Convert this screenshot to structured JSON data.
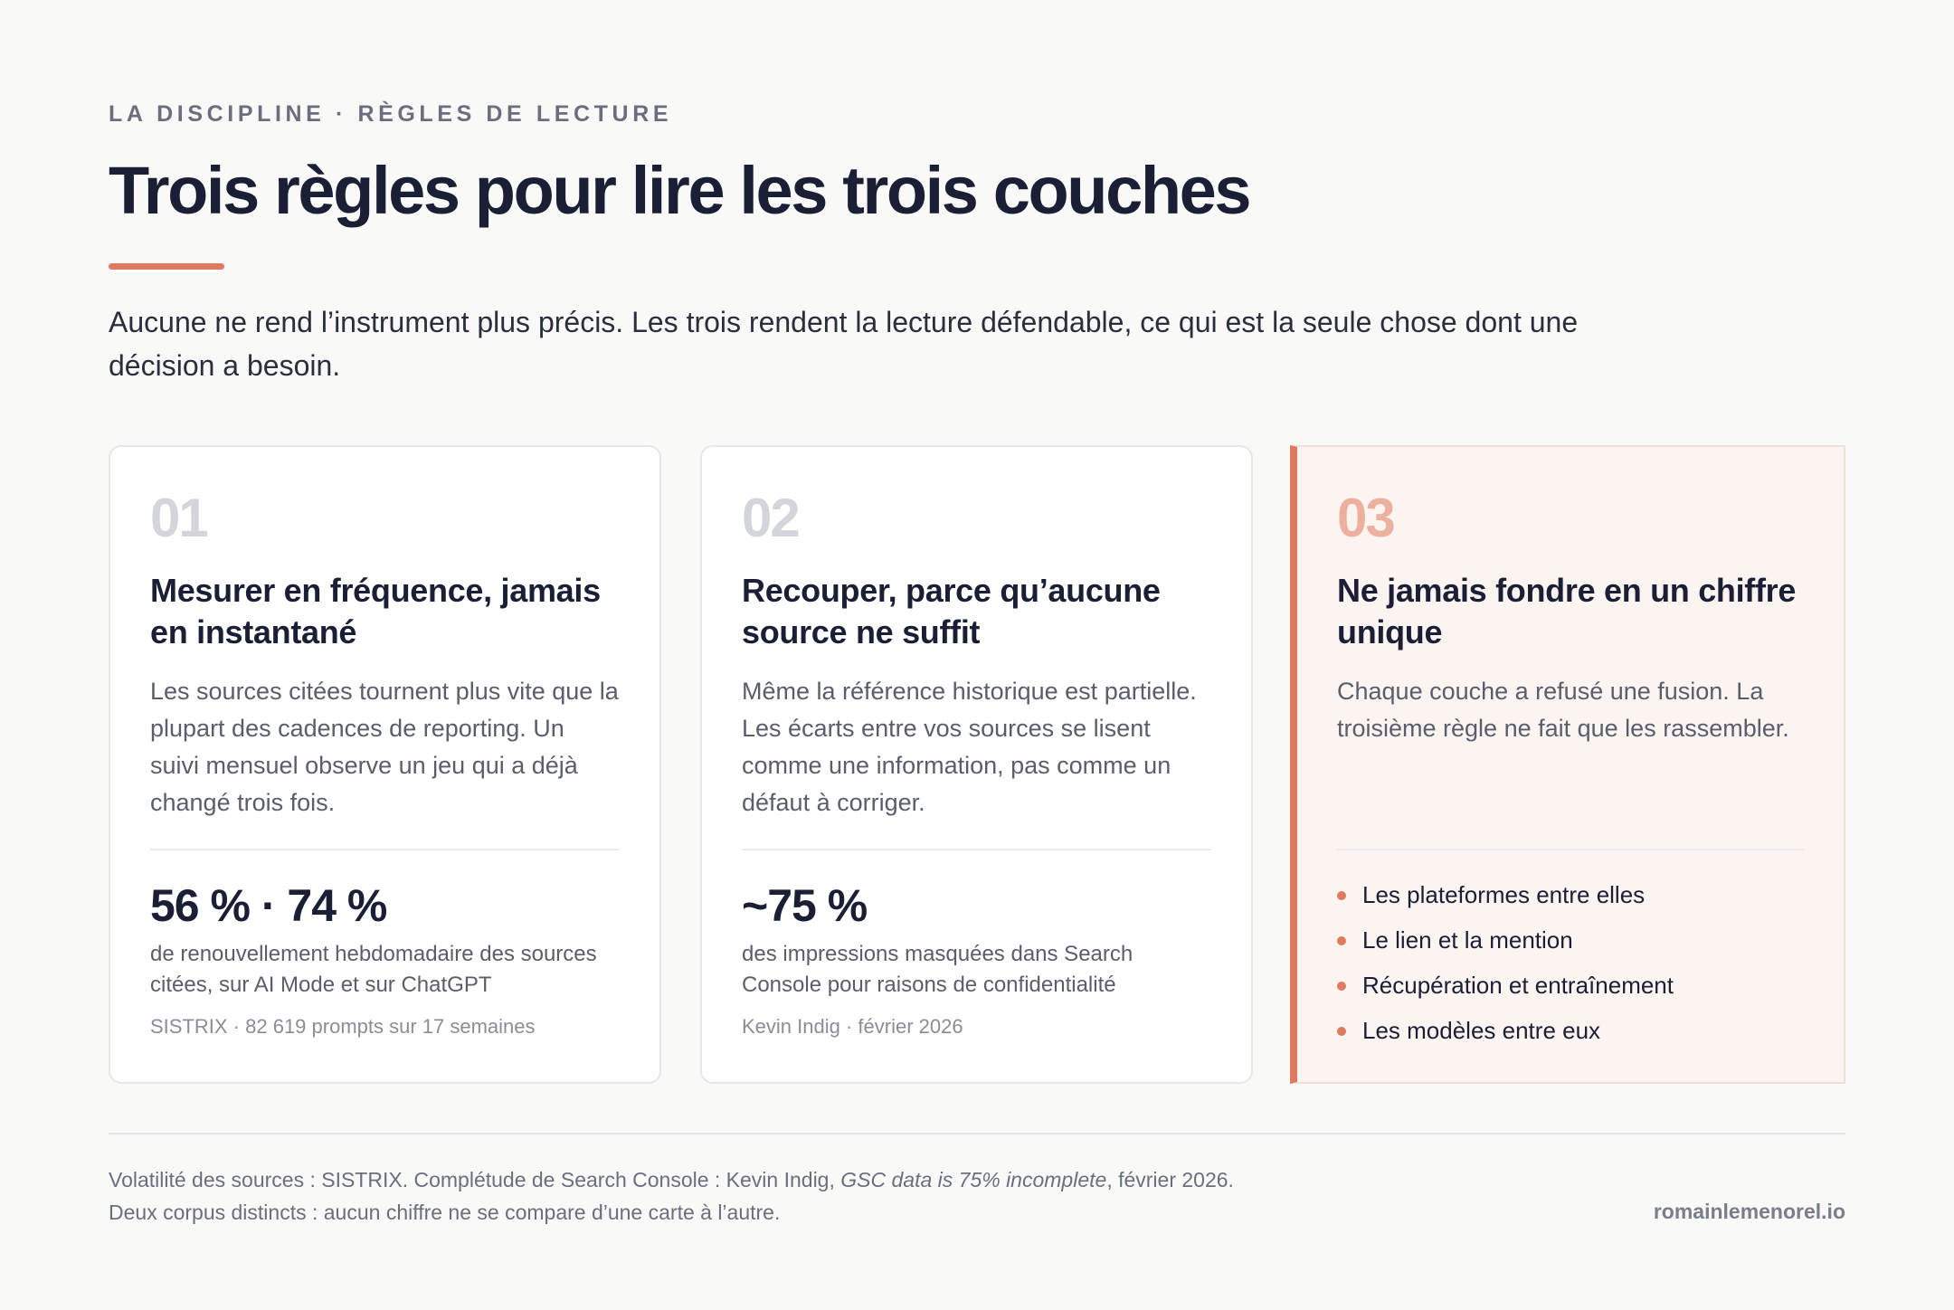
{
  "header": {
    "eyebrow": "LA DISCIPLINE · RÈGLES DE LECTURE",
    "title": "Trois règles pour lire les trois couches",
    "lead": "Aucune ne rend l’instrument plus précis. Les trois rendent la lecture défendable, ce qui est la seule chose dont une décision a besoin."
  },
  "cards": [
    {
      "number": "01",
      "title": "Mesurer en fréquence, jamais en instantané",
      "body": "Les sources citées tournent plus vite que la plupart des cadences de reporting. Un suivi mensuel observe un jeu qui a déjà changé trois fois.",
      "stat": "56 % · 74 %",
      "stat_caption": "de renouvellement hebdomadaire des sources citées, sur AI Mode et sur ChatGPT",
      "stat_source": "SISTRIX · 82 619 prompts sur 17 semaines"
    },
    {
      "number": "02",
      "title": "Recouper, parce qu’aucune source ne suffit",
      "body": "Même la référence historique est partielle. Les écarts entre vos sources se lisent comme une information, pas comme un défaut à corriger.",
      "stat": "~75 %",
      "stat_caption": "des impressions masquées dans Search Console pour raisons de confidentialité",
      "stat_source": "Kevin Indig · février 2026"
    },
    {
      "number": "03",
      "title": "Ne jamais fondre en un chiffre unique",
      "body": "Chaque couche a refusé une fusion. La troisième règle ne fait que les rassembler.",
      "bullets": [
        "Les plateformes entre elles",
        "Le lien et la mention",
        "Récupération et entraînement",
        "Les modèles entre eux"
      ]
    }
  ],
  "footer": {
    "note_part1": "Volatilité des sources : SISTRIX. Complétude de Search Console : Kevin Indig, ",
    "note_italic": "GSC data is 75% incomplete",
    "note_part2": ", février 2026.",
    "note_line2": "Deux corpus distincts : aucun chiffre ne se compare d’une carte à l’autre.",
    "brand": "romainlemenorel.io"
  },
  "colors": {
    "accent": "#e07a5f",
    "ink": "#1a1f36",
    "background": "#f9f9f7",
    "highlight_card": "#fcf4f1"
  }
}
